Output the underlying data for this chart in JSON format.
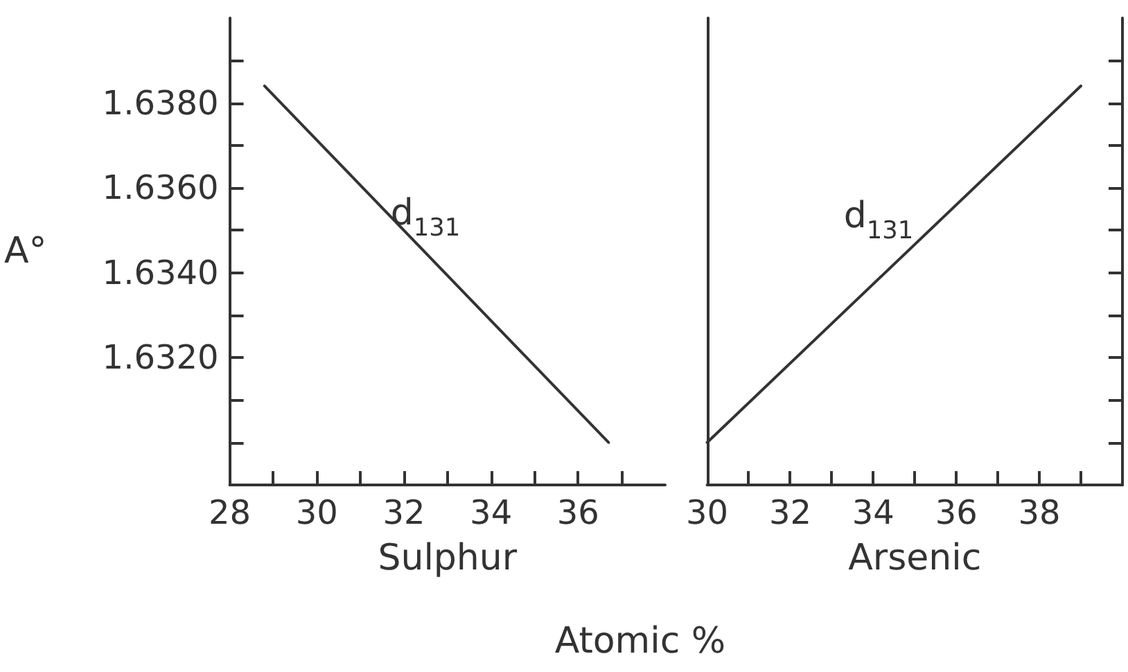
{
  "chart_data": [
    {
      "type": "line",
      "ylabel": "A°",
      "xlabel": "Sulphur",
      "x": [
        28.8,
        36.7
      ],
      "values": [
        1.6384,
        1.63
      ],
      "color": "#333333",
      "xlim": [
        28,
        38
      ],
      "xticks": [
        28,
        {
          "value": 29,
          "label": null
        },
        30,
        {
          "value": 31,
          "label": null
        },
        32,
        {
          "value": 33,
          "label": null
        },
        34,
        {
          "value": 35,
          "label": null
        },
        36,
        {
          "value": 37,
          "label": null
        }
      ],
      "ylim": [
        1.629,
        1.64
      ],
      "yticks": [
        {
          "value": 1.63,
          "label": null
        },
        {
          "value": 1.631,
          "label": null
        },
        {
          "value": 1.632,
          "label": "1.6320"
        },
        {
          "value": 1.633,
          "label": null
        },
        {
          "value": 1.634,
          "label": "1.6340"
        },
        {
          "value": 1.635,
          "label": null
        },
        {
          "value": 1.636,
          "label": "1.6360"
        },
        {
          "value": 1.637,
          "label": null
        },
        {
          "value": 1.638,
          "label": "1.6380"
        },
        {
          "value": 1.639,
          "label": null
        }
      ],
      "annotations": [
        "d$_{131}$",
        "Atomic %"
      ]
    },
    {
      "type": "line",
      "xlabel": "Arsenic",
      "x": [
        30,
        39
      ],
      "values": [
        1.63,
        1.6384
      ],
      "color": "#333333",
      "xlim": [
        30,
        40
      ],
      "xticks": [
        30,
        {
          "value": 31,
          "label": null
        },
        32,
        {
          "value": 33,
          "label": null
        },
        34,
        {
          "value": 35,
          "label": null
        },
        36,
        {
          "value": 37,
          "label": null
        },
        38,
        {
          "value": 39,
          "label": null
        }
      ],
      "ylim": [
        1.629,
        1.64
      ],
      "yticks": [
        {
          "value": 1.63,
          "label": null
        },
        {
          "value": 1.631,
          "label": null
        },
        {
          "value": 1.632,
          "label": null
        },
        {
          "value": 1.633,
          "label": null
        },
        {
          "value": 1.634,
          "label": null
        },
        {
          "value": 1.635,
          "label": null
        },
        {
          "value": 1.636,
          "label": null
        },
        {
          "value": 1.637,
          "label": null
        },
        {
          "value": 1.638,
          "label": null
        },
        {
          "value": 1.639,
          "label": null
        }
      ],
      "tick_labels": "x",
      "annotations": [
        "d$_{131}$"
      ]
    }
  ]
}
